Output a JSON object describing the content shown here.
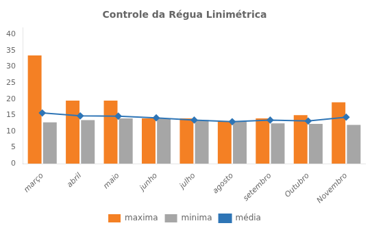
{
  "chart_data": {
    "type": "bar",
    "title": "Controle da Régua Linimétrica",
    "categories": [
      "março",
      "abril",
      "maio",
      "junho",
      "julho",
      "agosto",
      "setembro",
      "Outubro",
      "Novembro"
    ],
    "series": [
      {
        "name": "maxima",
        "type": "bar",
        "color": "#f48024",
        "values": [
          33.5,
          19.5,
          19.5,
          14.0,
          14.0,
          13.0,
          14.0,
          15.0,
          19.0
        ]
      },
      {
        "name": "minima",
        "type": "bar",
        "color": "#a6a6a6",
        "values": [
          12.8,
          13.5,
          14.0,
          14.0,
          13.5,
          13.0,
          12.5,
          12.3,
          12.0
        ]
      },
      {
        "name": "média",
        "type": "line",
        "color": "#2e75b6",
        "marker": "diamond",
        "values": [
          15.7,
          14.8,
          14.7,
          14.2,
          13.5,
          13.0,
          13.5,
          13.2,
          14.4
        ]
      }
    ],
    "ylim": [
      0,
      42
    ],
    "yticks": [
      0,
      5,
      10,
      15,
      20,
      25,
      30,
      35,
      40
    ],
    "grid": false,
    "legend": "bottom"
  }
}
